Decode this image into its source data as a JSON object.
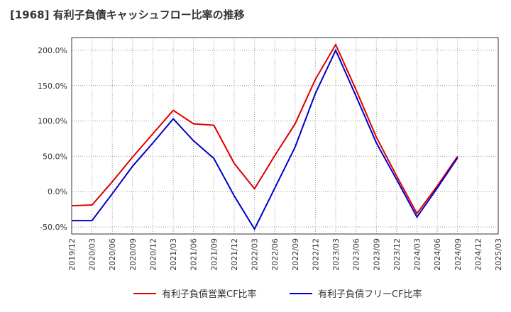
{
  "chart_data": {
    "type": "line",
    "title": "[1968]  有利子負債キャッシュフロー比率の推移",
    "xlabel": "",
    "ylabel": "",
    "x": [
      "2019/12",
      "2020/03",
      "2020/06",
      "2020/09",
      "2020/12",
      "2021/03",
      "2021/06",
      "2021/09",
      "2021/12",
      "2022/03",
      "2022/06",
      "2022/09",
      "2022/12",
      "2023/03",
      "2023/06",
      "2023/09",
      "2023/12",
      "2024/03",
      "2024/06",
      "2024/09",
      "2024/12",
      "2025/03"
    ],
    "ylim": [
      -60,
      218
    ],
    "yticks": [
      -50,
      0,
      50,
      100,
      150,
      200
    ],
    "ytick_labels": [
      "-50.0%",
      "0.0%",
      "50.0%",
      "100.0%",
      "150.0%",
      "200.0%"
    ],
    "grid": true,
    "legend_position": "bottom",
    "series": [
      {
        "name": "有利子負債営業CF比率",
        "color": "#dd0000",
        "values": [
          -20,
          -19,
          14,
          49,
          82,
          115,
          96,
          94,
          40,
          4,
          51,
          96,
          159,
          208,
          144,
          77,
          22,
          -31,
          8,
          50,
          null,
          null
        ]
      },
      {
        "name": "有利子負債フリーCF比率",
        "color": "#0000cc",
        "values": [
          -41,
          -41,
          -3,
          36,
          69,
          103,
          72,
          47,
          -6,
          -53,
          5,
          63,
          139,
          200,
          135,
          69,
          17,
          -36,
          5,
          48,
          null,
          null
        ]
      }
    ]
  }
}
